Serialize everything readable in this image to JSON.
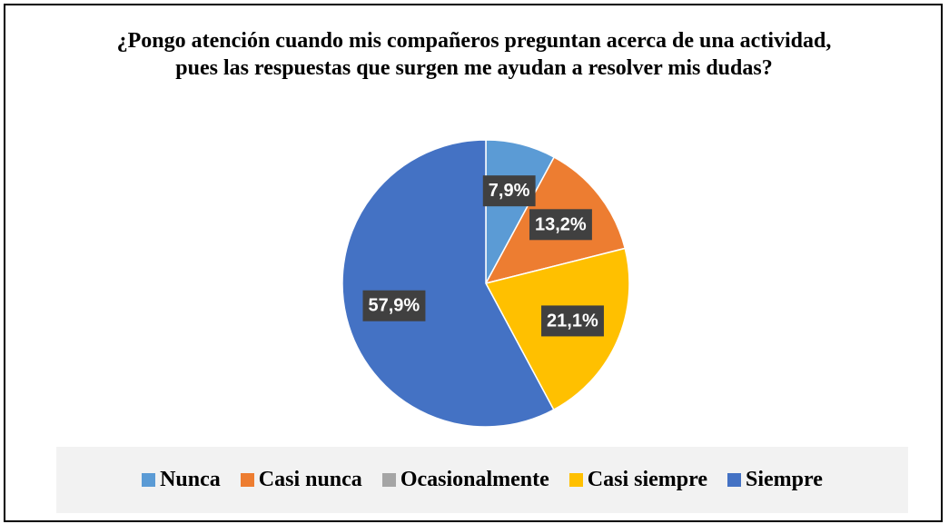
{
  "chart_data": {
    "type": "pie",
    "title": "¿Pongo atención cuando mis compañeros preguntan acerca de una actividad, pues las respuestas que surgen me ayudan a resolver mis dudas?",
    "categories": [
      "Nunca",
      "Casi nunca",
      "Ocasionalmente",
      "Casi siempre",
      "Siempre"
    ],
    "values": [
      7.9,
      13.2,
      0,
      21.1,
      57.9
    ],
    "value_labels": [
      "7,9%",
      "13,2%",
      null,
      "21,1%",
      "57,9%"
    ],
    "colors": [
      "#5b9bd5",
      "#ed7d31",
      "#a5a5a5",
      "#ffc000",
      "#4472c4"
    ],
    "legend": "bottom"
  }
}
